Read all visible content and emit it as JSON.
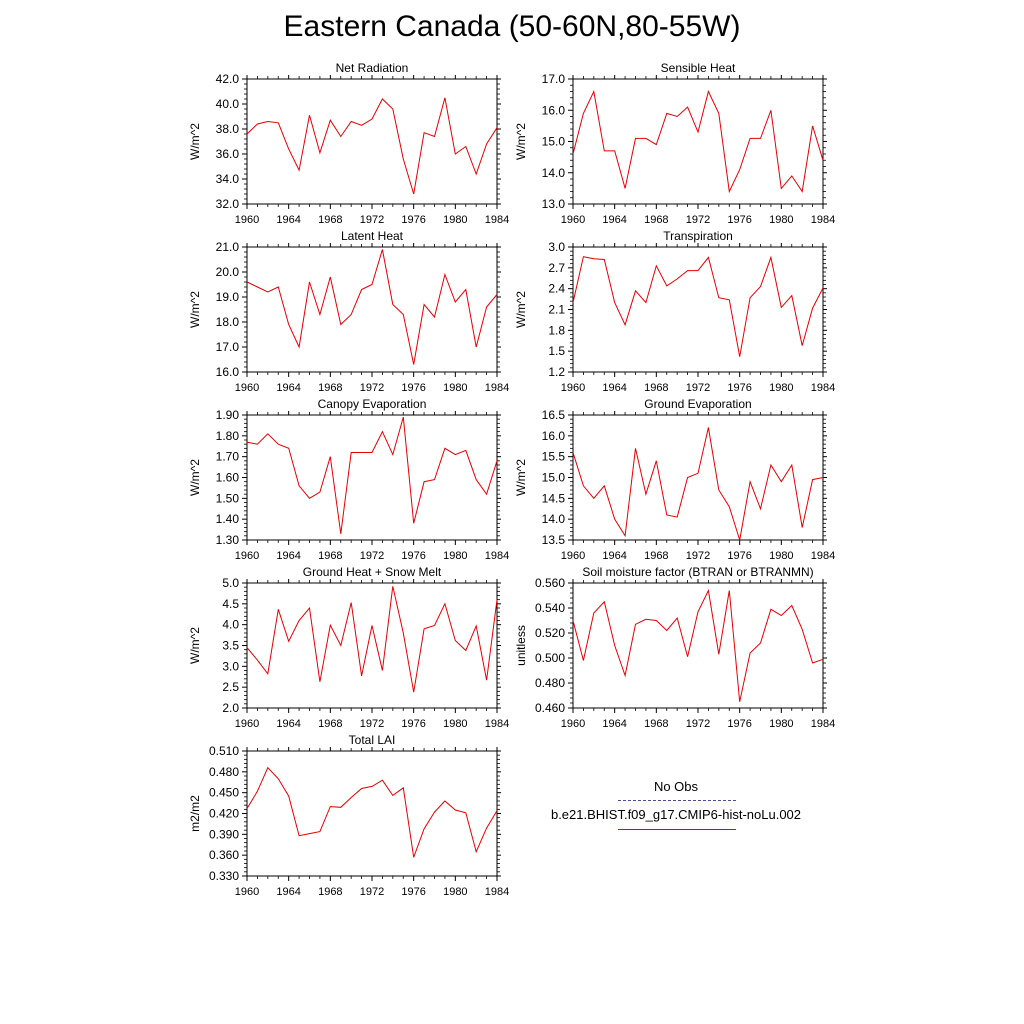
{
  "page": {
    "title": "Eastern Canada (50-60N,80-55W)"
  },
  "legend": {
    "obs_label": "No Obs",
    "obs_color": "#4a4a9a",
    "model_label": "b.e21.BHIST.f09_g17.CMIP6-hist-noLu.002",
    "model_color": "#e60000"
  },
  "chart_data": [
    {
      "type": "line",
      "title": "Net Radiation",
      "ylabel": "W/m^2",
      "xlim": [
        1960,
        1984
      ],
      "ylim": [
        32.0,
        42.0
      ],
      "xticks": [
        1960,
        1964,
        1968,
        1972,
        1976,
        1980,
        1984
      ],
      "yticks": [
        "32.0",
        "34.0",
        "36.0",
        "38.0",
        "40.0",
        "42.0"
      ],
      "x": [
        1960,
        1961,
        1962,
        1963,
        1964,
        1965,
        1966,
        1967,
        1968,
        1969,
        1970,
        1971,
        1972,
        1973,
        1974,
        1975,
        1976,
        1977,
        1978,
        1979,
        1980,
        1981,
        1982,
        1983,
        1984
      ],
      "series": [
        {
          "color": "#e60000",
          "values": [
            37.6,
            38.4,
            38.6,
            38.5,
            36.4,
            34.7,
            39.1,
            36.1,
            38.7,
            37.4,
            38.6,
            38.3,
            38.8,
            40.4,
            39.6,
            35.6,
            32.8,
            37.7,
            37.4,
            40.5,
            36.0,
            36.6,
            34.4,
            36.8,
            38.1
          ]
        }
      ]
    },
    {
      "type": "line",
      "title": "Sensible Heat",
      "ylabel": "W/m^2",
      "xlim": [
        1960,
        1984
      ],
      "ylim": [
        13.0,
        17.0
      ],
      "xticks": [
        1960,
        1964,
        1968,
        1972,
        1976,
        1980,
        1984
      ],
      "yticks": [
        "13.0",
        "14.0",
        "15.0",
        "16.0",
        "17.0"
      ],
      "x": [
        1960,
        1961,
        1962,
        1963,
        1964,
        1965,
        1966,
        1967,
        1968,
        1969,
        1970,
        1971,
        1972,
        1973,
        1974,
        1975,
        1976,
        1977,
        1978,
        1979,
        1980,
        1981,
        1982,
        1983,
        1984
      ],
      "series": [
        {
          "color": "#e60000",
          "values": [
            14.6,
            15.9,
            16.6,
            14.7,
            14.7,
            13.5,
            15.1,
            15.1,
            14.9,
            15.9,
            15.8,
            16.1,
            15.3,
            16.6,
            15.9,
            13.4,
            14.1,
            15.1,
            15.1,
            16.0,
            13.5,
            13.9,
            13.4,
            15.5,
            14.4
          ]
        }
      ]
    },
    {
      "type": "line",
      "title": "Latent Heat",
      "ylabel": "W/m^2",
      "xlim": [
        1960,
        1984
      ],
      "ylim": [
        16.0,
        21.0
      ],
      "xticks": [
        1960,
        1964,
        1968,
        1972,
        1976,
        1980,
        1984
      ],
      "yticks": [
        "16.0",
        "17.0",
        "18.0",
        "19.0",
        "20.0",
        "21.0"
      ],
      "x": [
        1960,
        1961,
        1962,
        1963,
        1964,
        1965,
        1966,
        1967,
        1968,
        1969,
        1970,
        1971,
        1972,
        1973,
        1974,
        1975,
        1976,
        1977,
        1978,
        1979,
        1980,
        1981,
        1982,
        1983,
        1984
      ],
      "series": [
        {
          "color": "#e60000",
          "values": [
            19.6,
            19.4,
            19.2,
            19.4,
            17.9,
            17.0,
            19.6,
            18.3,
            19.8,
            17.9,
            18.3,
            19.3,
            19.5,
            20.9,
            18.7,
            18.3,
            16.3,
            18.7,
            18.2,
            19.9,
            18.8,
            19.3,
            17.0,
            18.6,
            19.1
          ]
        }
      ]
    },
    {
      "type": "line",
      "title": "Transpiration",
      "ylabel": "W/m^2",
      "xlim": [
        1960,
        1984
      ],
      "ylim": [
        1.2,
        3.0
      ],
      "xticks": [
        1960,
        1964,
        1968,
        1972,
        1976,
        1980,
        1984
      ],
      "yticks": [
        "1.2",
        "1.5",
        "1.8",
        "2.1",
        "2.4",
        "2.7",
        "3.0"
      ],
      "x": [
        1960,
        1961,
        1962,
        1963,
        1964,
        1965,
        1966,
        1967,
        1968,
        1969,
        1970,
        1971,
        1972,
        1973,
        1974,
        1975,
        1976,
        1977,
        1978,
        1979,
        1980,
        1981,
        1982,
        1983,
        1984
      ],
      "series": [
        {
          "color": "#e60000",
          "values": [
            2.2,
            2.86,
            2.83,
            2.82,
            2.2,
            1.88,
            2.37,
            2.2,
            2.73,
            2.44,
            2.54,
            2.66,
            2.66,
            2.85,
            2.27,
            2.24,
            1.42,
            2.27,
            2.43,
            2.85,
            2.13,
            2.3,
            1.58,
            2.12,
            2.41
          ]
        }
      ]
    },
    {
      "type": "line",
      "title": "Canopy Evaporation",
      "ylabel": "W/m^2",
      "xlim": [
        1960,
        1984
      ],
      "ylim": [
        1.3,
        1.9
      ],
      "xticks": [
        1960,
        1964,
        1968,
        1972,
        1976,
        1980,
        1984
      ],
      "yticks": [
        "1.30",
        "1.40",
        "1.50",
        "1.60",
        "1.70",
        "1.80",
        "1.90"
      ],
      "x": [
        1960,
        1961,
        1962,
        1963,
        1964,
        1965,
        1966,
        1967,
        1968,
        1969,
        1970,
        1971,
        1972,
        1973,
        1974,
        1975,
        1976,
        1977,
        1978,
        1979,
        1980,
        1981,
        1982,
        1983,
        1984
      ],
      "series": [
        {
          "color": "#e60000",
          "values": [
            1.77,
            1.76,
            1.81,
            1.76,
            1.74,
            1.56,
            1.5,
            1.53,
            1.7,
            1.33,
            1.72,
            1.72,
            1.72,
            1.82,
            1.71,
            1.89,
            1.38,
            1.58,
            1.59,
            1.74,
            1.71,
            1.73,
            1.59,
            1.52,
            1.68
          ]
        }
      ]
    },
    {
      "type": "line",
      "title": "Ground Evaporation",
      "ylabel": "W/m^2",
      "xlim": [
        1960,
        1984
      ],
      "ylim": [
        13.5,
        16.5
      ],
      "xticks": [
        1960,
        1964,
        1968,
        1972,
        1976,
        1980,
        1984
      ],
      "yticks": [
        "13.5",
        "14.0",
        "14.5",
        "15.0",
        "15.5",
        "16.0",
        "16.5"
      ],
      "x": [
        1960,
        1961,
        1962,
        1963,
        1964,
        1965,
        1966,
        1967,
        1968,
        1969,
        1970,
        1971,
        1972,
        1973,
        1974,
        1975,
        1976,
        1977,
        1978,
        1979,
        1980,
        1981,
        1982,
        1983,
        1984
      ],
      "series": [
        {
          "color": "#e60000",
          "values": [
            15.6,
            14.8,
            14.5,
            14.8,
            14.0,
            13.6,
            15.7,
            14.6,
            15.4,
            14.1,
            14.05,
            15.0,
            15.1,
            16.2,
            14.7,
            14.3,
            13.5,
            14.9,
            14.25,
            15.3,
            14.9,
            15.3,
            13.8,
            14.95,
            15.0
          ]
        }
      ]
    },
    {
      "type": "line",
      "title": "Ground Heat + Snow Melt",
      "ylabel": "W/m^2",
      "xlim": [
        1960,
        1984
      ],
      "ylim": [
        2.0,
        5.0
      ],
      "xticks": [
        1960,
        1964,
        1968,
        1972,
        1976,
        1980,
        1984
      ],
      "yticks": [
        "2.0",
        "2.5",
        "3.0",
        "3.5",
        "4.0",
        "4.5",
        "5.0"
      ],
      "x": [
        1960,
        1961,
        1962,
        1963,
        1964,
        1965,
        1966,
        1967,
        1968,
        1969,
        1970,
        1971,
        1972,
        1973,
        1974,
        1975,
        1976,
        1977,
        1978,
        1979,
        1980,
        1981,
        1982,
        1983,
        1984
      ],
      "series": [
        {
          "color": "#e60000",
          "values": [
            3.45,
            3.15,
            2.82,
            4.37,
            3.6,
            4.1,
            4.4,
            2.63,
            3.99,
            3.5,
            4.53,
            2.77,
            3.98,
            2.9,
            4.92,
            3.8,
            2.38,
            3.9,
            3.98,
            4.5,
            3.62,
            3.38,
            3.97,
            2.67,
            4.6
          ]
        }
      ]
    },
    {
      "type": "line",
      "title": "Soil moisture factor (BTRAN or BTRANMN)",
      "ylabel": "unitless",
      "xlim": [
        1960,
        1984
      ],
      "ylim": [
        0.46,
        0.56
      ],
      "xticks": [
        1960,
        1964,
        1968,
        1972,
        1976,
        1980,
        1984
      ],
      "yticks": [
        "0.460",
        "0.480",
        "0.500",
        "0.520",
        "0.540",
        "0.560"
      ],
      "x": [
        1960,
        1961,
        1962,
        1963,
        1964,
        1965,
        1966,
        1967,
        1968,
        1969,
        1970,
        1971,
        1972,
        1973,
        1974,
        1975,
        1976,
        1977,
        1978,
        1979,
        1980,
        1981,
        1982,
        1983,
        1984
      ],
      "series": [
        {
          "color": "#e60000",
          "values": [
            0.53,
            0.498,
            0.536,
            0.545,
            0.51,
            0.486,
            0.527,
            0.531,
            0.53,
            0.522,
            0.532,
            0.501,
            0.537,
            0.554,
            0.503,
            0.554,
            0.465,
            0.504,
            0.512,
            0.539,
            0.534,
            0.542,
            0.523,
            0.496,
            0.499
          ]
        }
      ]
    },
    {
      "type": "line",
      "title": "Total LAI",
      "ylabel": "m2/m2",
      "xlim": [
        1960,
        1984
      ],
      "ylim": [
        0.33,
        0.51
      ],
      "xticks": [
        1960,
        1964,
        1968,
        1972,
        1976,
        1980,
        1984
      ],
      "yticks": [
        "0.330",
        "0.360",
        "0.390",
        "0.420",
        "0.450",
        "0.480",
        "0.510"
      ],
      "x": [
        1960,
        1961,
        1962,
        1963,
        1964,
        1965,
        1966,
        1967,
        1968,
        1969,
        1970,
        1971,
        1972,
        1973,
        1974,
        1975,
        1976,
        1977,
        1978,
        1979,
        1980,
        1981,
        1982,
        1983,
        1984
      ],
      "series": [
        {
          "color": "#e60000",
          "values": [
            0.427,
            0.452,
            0.486,
            0.47,
            0.445,
            0.388,
            0.391,
            0.394,
            0.43,
            0.429,
            0.443,
            0.456,
            0.459,
            0.468,
            0.446,
            0.457,
            0.357,
            0.398,
            0.422,
            0.438,
            0.425,
            0.421,
            0.365,
            0.399,
            0.424
          ]
        }
      ]
    }
  ]
}
